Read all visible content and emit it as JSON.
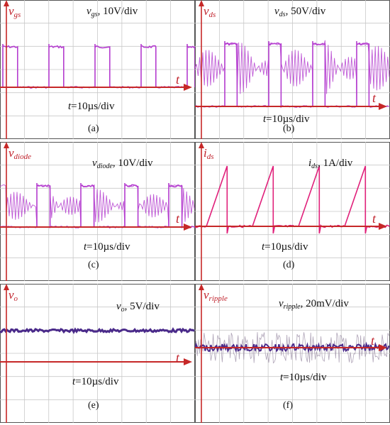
{
  "colors": {
    "grid": "#c8c8c8",
    "axis": "#c62828",
    "signal_magenta": "#b43ccf",
    "signal_pink": "#e0207a",
    "signal_dark": "#4a2a8a",
    "signal_grey": "#9c8fa6",
    "border": "#555555"
  },
  "chart_data": [
    {
      "panel": "(a)",
      "type": "line",
      "y_label_base": "v",
      "y_label_sub": "gs",
      "scale_base": "v",
      "scale_sub": "gs",
      "scale_text": ", 10V/div",
      "time_var": "t",
      "time_text": "=10µs/div",
      "x_symbol": "t",
      "waveform": "square pulses",
      "grid": true
    },
    {
      "panel": "(b)",
      "type": "line",
      "y_label_base": "v",
      "y_label_sub": "ds",
      "scale_base": "v",
      "scale_sub": "ds",
      "scale_text": ", 50V/div",
      "time_var": "t",
      "time_text": "=10µs/div",
      "x_symbol": "t",
      "waveform": "pulses with ringing",
      "grid": true
    },
    {
      "panel": "(c)",
      "type": "line",
      "y_label_base": "v",
      "y_label_sub": "diode",
      "scale_base": "v",
      "scale_sub": "diode",
      "scale_text": ", 10V/div",
      "time_var": "t",
      "time_text": "=10µs/div",
      "x_symbol": "t",
      "waveform": "pulses with ringing",
      "grid": true
    },
    {
      "panel": "(d)",
      "type": "line",
      "y_label_base": "i",
      "y_label_sub": "ds",
      "scale_base": "i",
      "scale_sub": "ds",
      "scale_text": ", 1A/div",
      "time_var": "t",
      "time_text": "=10µs/div",
      "x_symbol": "t",
      "waveform": "sawtooth ramps",
      "grid": true
    },
    {
      "panel": "(e)",
      "type": "line",
      "y_label_base": "v",
      "y_label_sub": "o",
      "scale_base": "v",
      "scale_sub": "o",
      "scale_text": ", 5V/div",
      "time_var": "t",
      "time_text": "=10µs/div",
      "x_symbol": "t",
      "waveform": "flat DC level",
      "grid": true
    },
    {
      "panel": "(f)",
      "type": "line",
      "y_label_base": "v",
      "y_label_sub": "ripple",
      "scale_base": "v",
      "scale_sub": "ripple",
      "scale_text": ", 20mV/div",
      "time_var": "t",
      "time_text": "=10µs/div",
      "x_symbol": "t",
      "waveform": "high-frequency ripple",
      "grid": true
    }
  ]
}
